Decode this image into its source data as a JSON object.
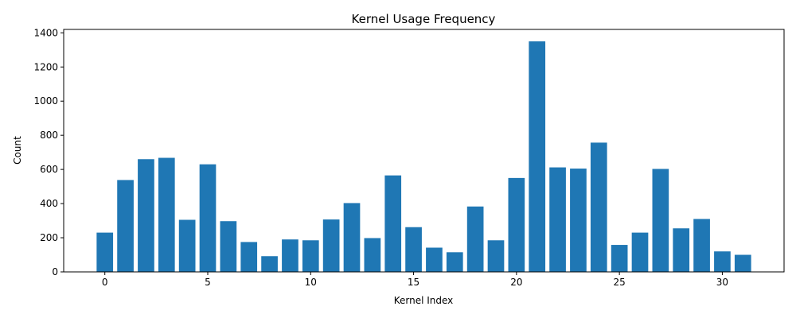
{
  "chart_data": {
    "type": "bar",
    "title": "Kernel Usage Frequency",
    "xlabel": "Kernel Index",
    "ylabel": "Count",
    "xlim": [
      -2,
      33
    ],
    "ylim": [
      0,
      1420
    ],
    "xticks": [
      0,
      5,
      10,
      15,
      20,
      25,
      30
    ],
    "yticks": [
      0,
      200,
      400,
      600,
      800,
      1000,
      1200,
      1400
    ],
    "bar_color": "#1f77b4",
    "grid": false,
    "legend": "none",
    "categories": [
      0,
      1,
      2,
      3,
      4,
      5,
      6,
      7,
      8,
      9,
      10,
      11,
      12,
      13,
      14,
      15,
      16,
      17,
      18,
      19,
      20,
      21,
      22,
      23,
      24,
      25,
      26,
      27,
      28,
      29,
      30,
      31
    ],
    "values": [
      230,
      538,
      660,
      668,
      305,
      630,
      297,
      175,
      92,
      190,
      185,
      307,
      403,
      198,
      565,
      262,
      142,
      115,
      383,
      185,
      550,
      1350,
      612,
      605,
      757,
      158,
      230,
      603,
      255,
      310,
      120,
      100
    ]
  }
}
